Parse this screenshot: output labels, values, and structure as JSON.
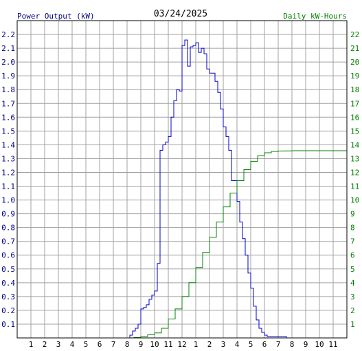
{
  "chart_data": {
    "type": "line",
    "title": "03/24/2025",
    "y_left_label": "Power Output (kW)",
    "y_right_label": "Daily kW-Hours",
    "x_ticks": [
      "1",
      "2",
      "3",
      "4",
      "5",
      "6",
      "7",
      "8",
      "9",
      "10",
      "11",
      "12",
      "1",
      "2",
      "3",
      "4",
      "5",
      "6",
      "7",
      "8",
      "9",
      "10",
      "11"
    ],
    "x_range": [
      0,
      24
    ],
    "y_left_range": [
      0,
      2.3
    ],
    "y_left_ticks": [
      "0.1",
      "0.2",
      "0.3",
      "0.4",
      "0.5",
      "0.6",
      "0.7",
      "0.8",
      "0.9",
      "1.0",
      "1.1",
      "1.2",
      "1.3",
      "1.4",
      "1.5",
      "1.6",
      "1.7",
      "1.8",
      "1.9",
      "2.0",
      "2.1",
      "2.2"
    ],
    "y_right_range": [
      0,
      23
    ],
    "y_right_ticks": [
      "1",
      "2",
      "3",
      "4",
      "5",
      "6",
      "7",
      "8",
      "9",
      "10",
      "11",
      "12",
      "13",
      "14",
      "15",
      "16",
      "17",
      "18",
      "19",
      "20",
      "21",
      "22"
    ],
    "grid": true,
    "colors": {
      "power": "#0000cc",
      "energy": "#008000",
      "grid": "#a0a0a0",
      "left_axis_text": "#000080",
      "right_axis_text": "#008000"
    },
    "series": [
      {
        "name": "Power Output (kW)",
        "axis": "left",
        "color": "#0000cc",
        "x": [
          7.9,
          8.2,
          8.4,
          8.6,
          8.8,
          9.0,
          9.2,
          9.4,
          9.6,
          9.8,
          10.0,
          10.2,
          10.4,
          10.6,
          10.8,
          11.0,
          11.2,
          11.4,
          11.6,
          11.8,
          12.0,
          12.2,
          12.4,
          12.6,
          12.8,
          13.0,
          13.2,
          13.4,
          13.6,
          13.8,
          14.0,
          14.2,
          14.4,
          14.6,
          14.8,
          15.0,
          15.2,
          15.4,
          15.6,
          15.8,
          16.0,
          16.2,
          16.4,
          16.6,
          16.8,
          17.0,
          17.2,
          17.4,
          17.6,
          17.8,
          18.0,
          18.2,
          18.4,
          18.6,
          18.8,
          19.0,
          19.2,
          19.4,
          19.6,
          19.8,
          20.0,
          20.2,
          20.5
        ],
        "y": [
          0.0,
          0.02,
          0.05,
          0.07,
          0.1,
          0.21,
          0.22,
          0.24,
          0.28,
          0.31,
          0.34,
          0.54,
          1.36,
          1.4,
          1.42,
          1.46,
          1.6,
          1.72,
          1.8,
          1.79,
          2.12,
          2.16,
          1.97,
          2.11,
          2.12,
          2.14,
          2.07,
          2.1,
          2.06,
          1.95,
          1.92,
          1.92,
          1.86,
          1.78,
          1.66,
          1.53,
          1.46,
          1.36,
          1.14,
          1.14,
          0.99,
          0.84,
          0.72,
          0.6,
          0.47,
          0.36,
          0.23,
          0.13,
          0.07,
          0.04,
          0.02,
          0.01,
          0.01,
          0.01,
          0.01,
          0.01,
          0.01,
          0.01,
          0.0,
          0.0,
          0.0,
          0.0,
          0.0
        ]
      },
      {
        "name": "Daily kW-Hours",
        "axis": "right",
        "color": "#008000",
        "x": [
          8.0,
          8.5,
          9.0,
          9.5,
          10.0,
          10.5,
          11.0,
          11.5,
          12.0,
          12.5,
          13.0,
          13.5,
          14.0,
          14.5,
          15.0,
          15.5,
          16.0,
          16.5,
          17.0,
          17.5,
          18.0,
          18.5,
          19.0,
          19.5,
          20.0,
          21.0,
          22.0,
          23.0,
          24.0
        ],
        "y": [
          0.0,
          0.03,
          0.1,
          0.23,
          0.36,
          0.7,
          1.37,
          2.1,
          3.0,
          4.0,
          5.1,
          6.2,
          7.3,
          8.4,
          9.5,
          10.5,
          11.4,
          12.2,
          12.8,
          13.2,
          13.42,
          13.52,
          13.55,
          13.56,
          13.57,
          13.57,
          13.57,
          13.57,
          13.57
        ]
      }
    ]
  }
}
